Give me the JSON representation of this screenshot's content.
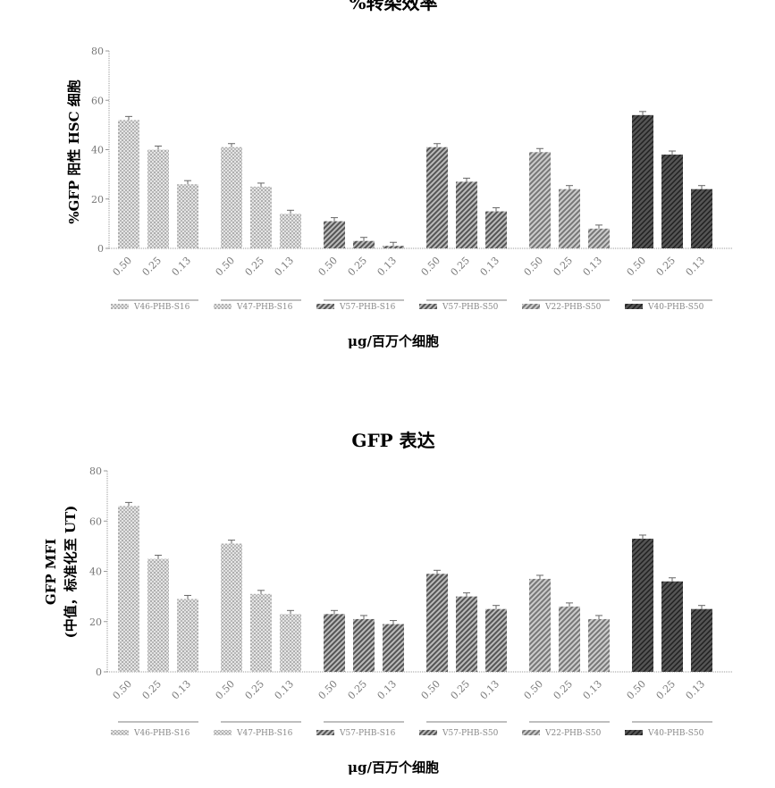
{
  "chart_data": [
    {
      "type": "bar",
      "title": "%转染效率",
      "ylabel": "%GFP 阳性 HSC 细胞",
      "xlabel": "μg/百万个细胞",
      "ylim": [
        0,
        80
      ],
      "yticks": [
        "0",
        "20",
        "40",
        "60",
        "80"
      ],
      "dose_labels": [
        "0.50",
        "0.25",
        "0.13"
      ],
      "legend_placement": "bottom",
      "series": [
        {
          "name": "V46-PHB-S16",
          "values": [
            52,
            40,
            26
          ],
          "pattern": "dots-light"
        },
        {
          "name": "V47-PHB-S16",
          "values": [
            41,
            25,
            14
          ],
          "pattern": "dots-light"
        },
        {
          "name": "V57-PHB-S16",
          "values": [
            11,
            3,
            1
          ],
          "pattern": "hatch"
        },
        {
          "name": "V57-PHB-S50",
          "values": [
            41,
            27,
            15
          ],
          "pattern": "hatch"
        },
        {
          "name": "V22-PHB-S50",
          "values": [
            39,
            24,
            8
          ],
          "pattern": "hatch-light"
        },
        {
          "name": "V40-PHB-S50",
          "values": [
            54,
            38,
            24
          ],
          "pattern": "dark"
        }
      ]
    },
    {
      "type": "bar",
      "title": "GFP 表达",
      "ylabel": "GFP MFI",
      "ylabel2": "(中值，标准化至 UT)",
      "xlabel": "μg/百万个细胞",
      "ylim": [
        0,
        80
      ],
      "yticks": [
        "0",
        "20",
        "40",
        "60",
        "80"
      ],
      "dose_labels": [
        "0.50",
        "0.25",
        "0.13"
      ],
      "legend_placement": "bottom",
      "series": [
        {
          "name": "V46-PHB-S16",
          "values": [
            66,
            45,
            29
          ],
          "pattern": "dots-light"
        },
        {
          "name": "V47-PHB-S16",
          "values": [
            51,
            31,
            23
          ],
          "pattern": "dots-light"
        },
        {
          "name": "V57-PHB-S16",
          "values": [
            23,
            21,
            19
          ],
          "pattern": "hatch"
        },
        {
          "name": "V57-PHB-S50",
          "values": [
            39,
            30,
            25
          ],
          "pattern": "hatch"
        },
        {
          "name": "V22-PHB-S50",
          "values": [
            37,
            26,
            21
          ],
          "pattern": "hatch-light"
        },
        {
          "name": "V40-PHB-S50",
          "values": [
            53,
            36,
            25
          ],
          "pattern": "dark"
        }
      ]
    }
  ]
}
